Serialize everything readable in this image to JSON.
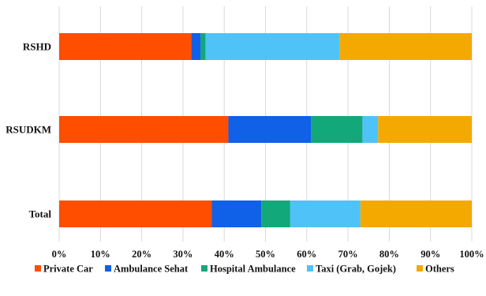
{
  "chart_data": {
    "type": "bar",
    "orientation": "horizontal",
    "stacked": true,
    "normalized_percent": true,
    "categories": [
      "RSHD",
      "RSUDKM",
      "Total"
    ],
    "series": [
      {
        "name": "Private Car",
        "color": "#FF4E00",
        "values": [
          32,
          41,
          37
        ]
      },
      {
        "name": "Ambulance Sehat",
        "color": "#1060E8",
        "values": [
          2.3,
          20,
          12
        ]
      },
      {
        "name": "Hospital Ambulance",
        "color": "#12A87A",
        "values": [
          1.2,
          12.5,
          7
        ]
      },
      {
        "name": "Taxi (Grab, Gojek)",
        "color": "#4FC3F7",
        "values": [
          32.5,
          3.8,
          17
        ]
      },
      {
        "name": "Others",
        "color": "#F4A900",
        "values": [
          32,
          22.7,
          27
        ]
      }
    ],
    "x_ticks": [
      "0%",
      "10%",
      "20%",
      "30%",
      "40%",
      "50%",
      "60%",
      "70%",
      "80%",
      "90%",
      "100%"
    ],
    "xlim": [
      0,
      100
    ],
    "title": "",
    "xlabel": "",
    "ylabel": "",
    "grid": "vertical",
    "grid_color": "#D9D9D9",
    "legend_position": "bottom"
  }
}
